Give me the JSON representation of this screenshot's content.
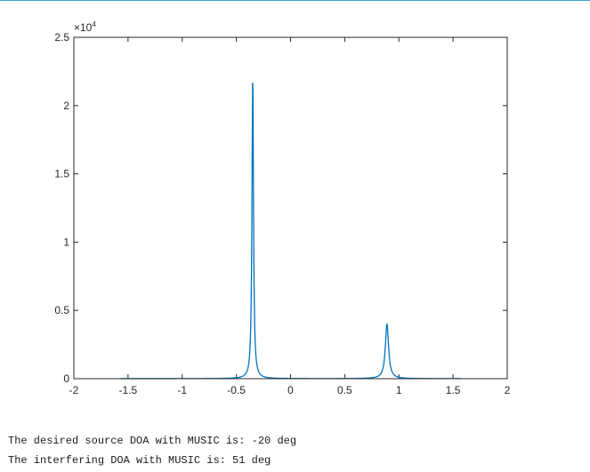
{
  "chart_data": {
    "type": "line",
    "title": "",
    "xlabel": "",
    "ylabel": "",
    "xlim": [
      -2,
      2
    ],
    "ylim": [
      0,
      25000
    ],
    "x_ticks": [
      "-2",
      "-1.5",
      "-1",
      "-0.5",
      "0",
      "0.5",
      "1",
      "1.5",
      "2"
    ],
    "y_ticks": [
      "0",
      "0.5",
      "1",
      "1.5",
      "2",
      "2.5"
    ],
    "y_exponent_prefix": "×10",
    "y_exponent_power": "4",
    "grid": false,
    "series": [
      {
        "color": "#0072bd",
        "data_range": [
          -1.5708,
          1.5708
        ],
        "baseline": 2,
        "peaks": [
          {
            "x": -0.349,
            "y": 22000,
            "halfwidth": 0.0085
          },
          {
            "x": 0.89,
            "y": 4000,
            "halfwidth": 0.018
          }
        ]
      }
    ]
  },
  "output": {
    "line1": "The desired source DOA with MUSIC is: -20 deg",
    "line2": "The interfering DOA with MUSIC is: 51 deg"
  }
}
